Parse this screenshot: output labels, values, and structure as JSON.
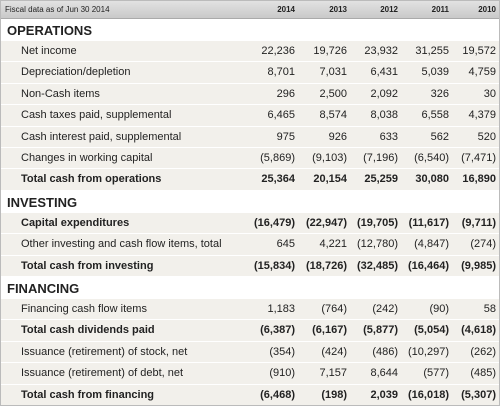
{
  "header": {
    "label": "Fiscal data as of Jun 30 2014",
    "years": [
      "2014",
      "2013",
      "2012",
      "2011",
      "2010"
    ]
  },
  "sections": [
    {
      "title": "OPERATIONS",
      "rows": [
        {
          "label": "Net income",
          "values": [
            "22,236",
            "19,726",
            "23,932",
            "31,255",
            "19,572"
          ]
        },
        {
          "label": "Depreciation/depletion",
          "values": [
            "8,701",
            "7,031",
            "6,431",
            "5,039",
            "4,759"
          ]
        },
        {
          "label": "Non-Cash items",
          "values": [
            "296",
            "2,500",
            "2,092",
            "326",
            "30"
          ]
        },
        {
          "label": "Cash taxes paid, supplemental",
          "values": [
            "6,465",
            "8,574",
            "8,038",
            "6,558",
            "4,379"
          ]
        },
        {
          "label": "Cash interest paid, supplemental",
          "values": [
            "975",
            "926",
            "633",
            "562",
            "520"
          ]
        },
        {
          "label": "Changes in working capital",
          "values": [
            "(5,869)",
            "(9,103)",
            "(7,196)",
            "(6,540)",
            "(7,471)"
          ]
        },
        {
          "label": "Total cash from operations",
          "values": [
            "25,364",
            "20,154",
            "25,259",
            "30,080",
            "16,890"
          ],
          "bold": true
        }
      ]
    },
    {
      "title": "INVESTING",
      "rows": [
        {
          "label": "Capital expenditures",
          "values": [
            "(16,479)",
            "(22,947)",
            "(19,705)",
            "(11,617)",
            "(9,711)"
          ],
          "bold": true
        },
        {
          "label": "Other investing and cash flow items, total",
          "values": [
            "645",
            "4,221",
            "(12,780)",
            "(4,847)",
            "(274)"
          ]
        },
        {
          "label": "Total cash from investing",
          "values": [
            "(15,834)",
            "(18,726)",
            "(32,485)",
            "(16,464)",
            "(9,985)"
          ],
          "bold": true
        }
      ]
    },
    {
      "title": "FINANCING",
      "rows": [
        {
          "label": "Financing cash flow items",
          "values": [
            "1,183",
            "(764)",
            "(242)",
            "(90)",
            "58"
          ]
        },
        {
          "label": "Total cash dividends paid",
          "values": [
            "(6,387)",
            "(6,167)",
            "(5,877)",
            "(5,054)",
            "(4,618)"
          ],
          "bold": true
        },
        {
          "label": "Issuance (retirement) of stock, net",
          "values": [
            "(354)",
            "(424)",
            "(486)",
            "(10,297)",
            "(262)"
          ]
        },
        {
          "label": "Issuance (retirement) of debt, net",
          "values": [
            "(910)",
            "7,157",
            "8,644",
            "(577)",
            "(485)"
          ]
        },
        {
          "label": "Total cash from financing",
          "values": [
            "(6,468)",
            "(198)",
            "2,039",
            "(16,018)",
            "(5,307)"
          ],
          "bold": true
        }
      ]
    }
  ]
}
